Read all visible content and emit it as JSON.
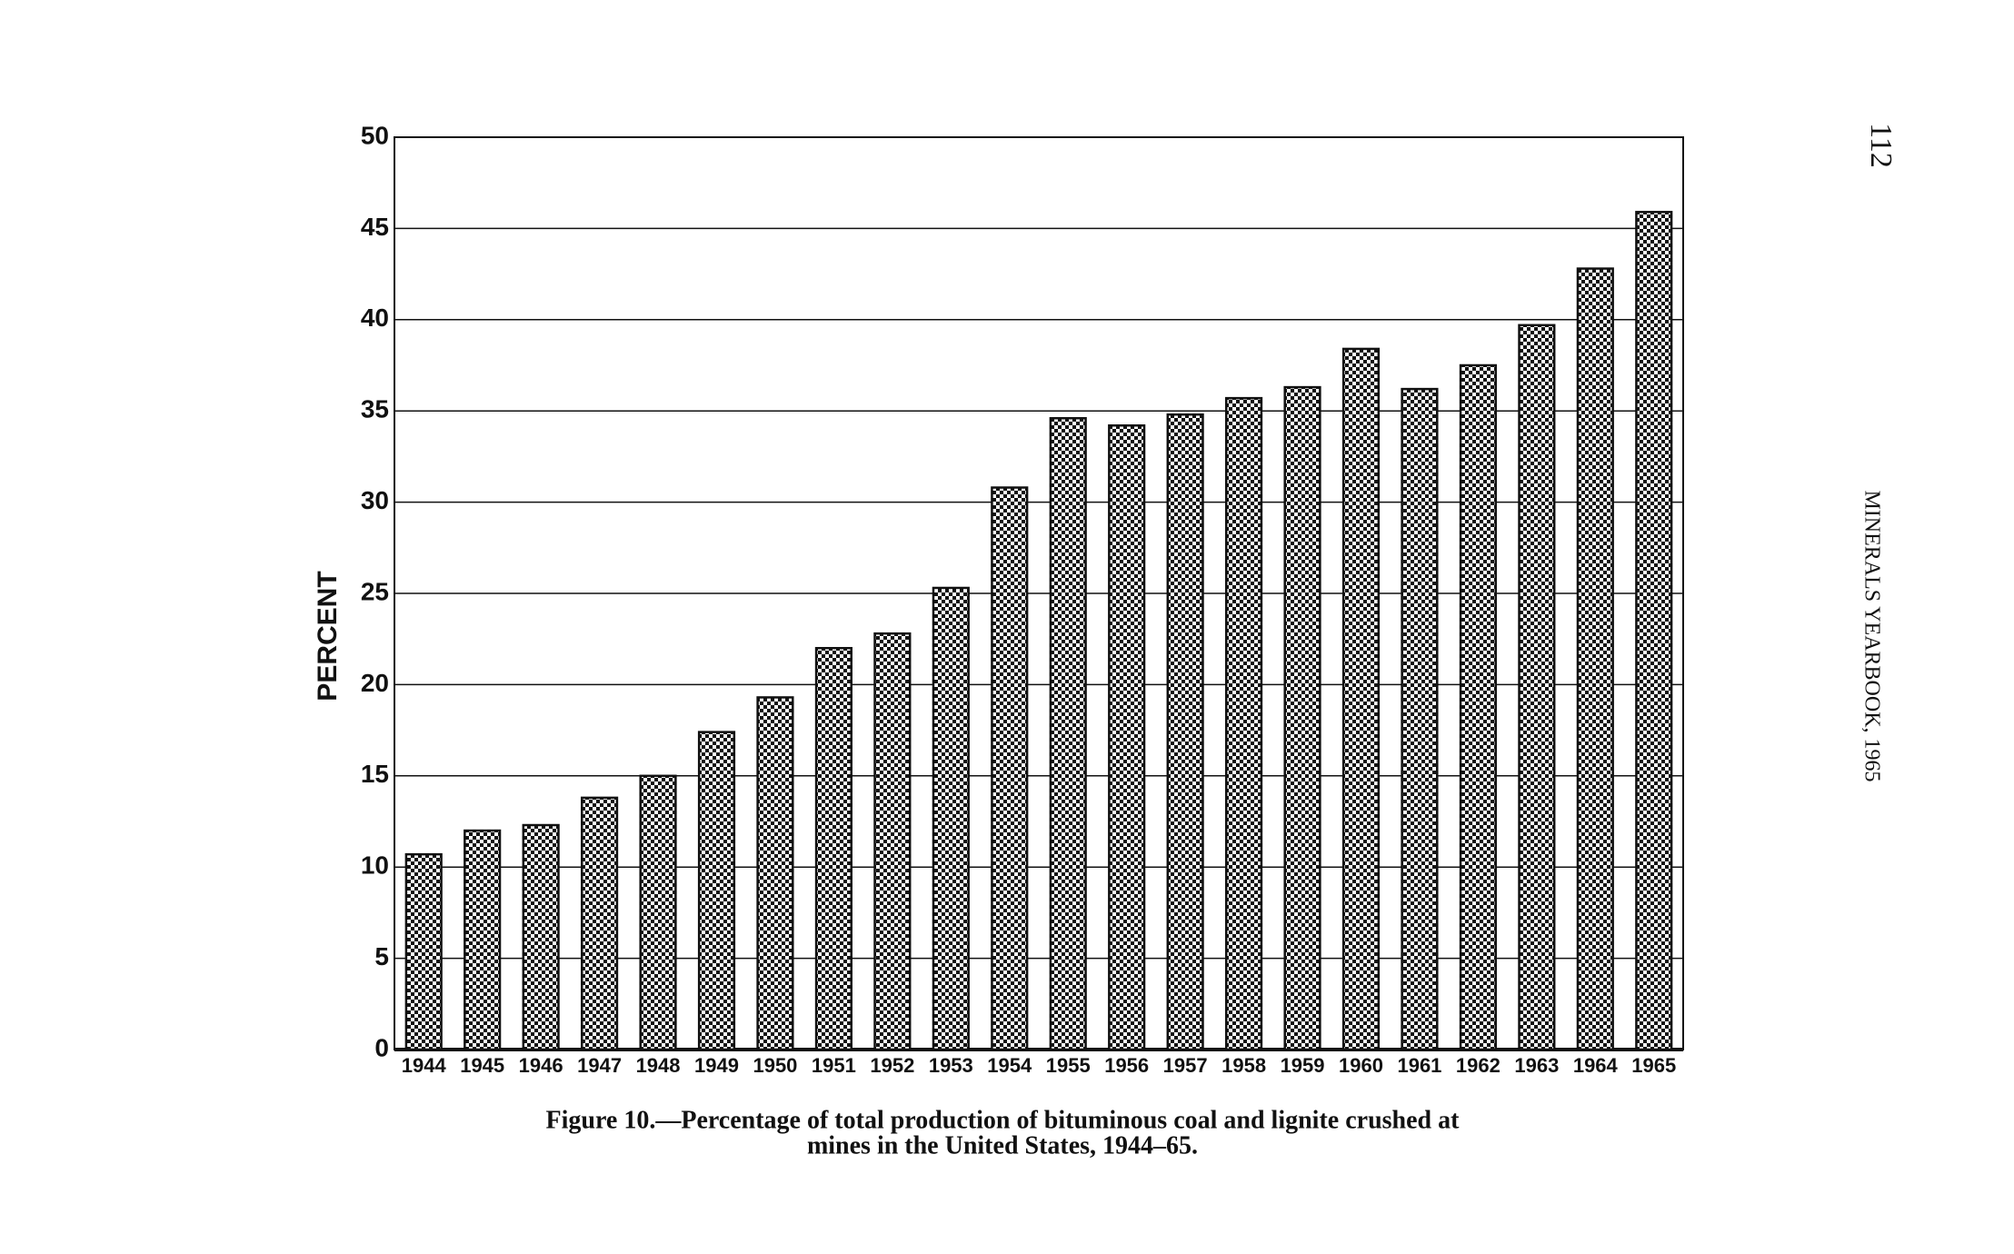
{
  "page": {
    "number": "112",
    "running_head": "MINERALS YEARBOOK, 1965"
  },
  "chart_data": {
    "type": "bar",
    "caption": [
      "Figure 10.—Percentage of total production of bituminous coal and lignite crushed at",
      "mines in the United States, 1944–65."
    ],
    "ylabel": "PERCENT",
    "categories": [
      "1944",
      "1945",
      "1946",
      "1947",
      "1948",
      "1949",
      "1950",
      "1951",
      "1952",
      "1953",
      "1954",
      "1955",
      "1956",
      "1957",
      "1958",
      "1959",
      "1960",
      "1961",
      "1962",
      "1963",
      "1964",
      "1965"
    ],
    "values": [
      10.7,
      12.0,
      12.3,
      13.8,
      15.0,
      17.4,
      19.3,
      22.0,
      22.8,
      25.3,
      30.8,
      34.6,
      34.2,
      34.8,
      35.7,
      36.3,
      38.4,
      36.2,
      37.5,
      39.7,
      42.8,
      45.9
    ],
    "color": "#111111",
    "ylim": [
      0,
      50
    ],
    "yticks": [
      0,
      5,
      10,
      15,
      20,
      25,
      30,
      35,
      40,
      45,
      50
    ],
    "grid": true
  }
}
